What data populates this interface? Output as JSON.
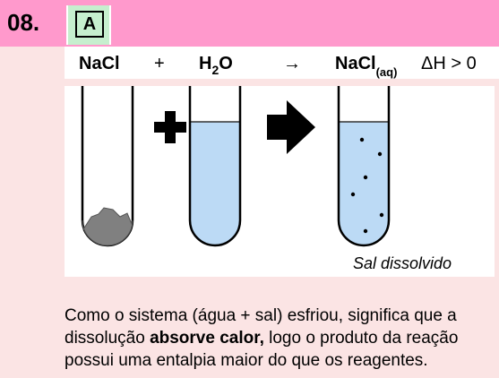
{
  "question": {
    "number": "08.",
    "answer": "A"
  },
  "equation": {
    "reactant1": "NaCl",
    "plus": "+",
    "reactant2_main": "H",
    "reactant2_sub": "2",
    "reactant2_end": "O",
    "arrow": "→",
    "product": "NaCl",
    "product_state": "(aq)",
    "enthalpy": "ΔH > 0"
  },
  "illustration": {
    "caption": "Sal dissolvido"
  },
  "explanation": {
    "part1": "Como o sistema (água + sal) esfriou, significa que a dissolução ",
    "bold": "absorve calor,",
    "part2": " logo o produto da reação possui uma entalpia maior do que os reagentes."
  },
  "colors": {
    "header": "#ff99cc",
    "answer_box": "#c6efce",
    "water": "#bcdaf5",
    "background": "#fbe4e4"
  }
}
